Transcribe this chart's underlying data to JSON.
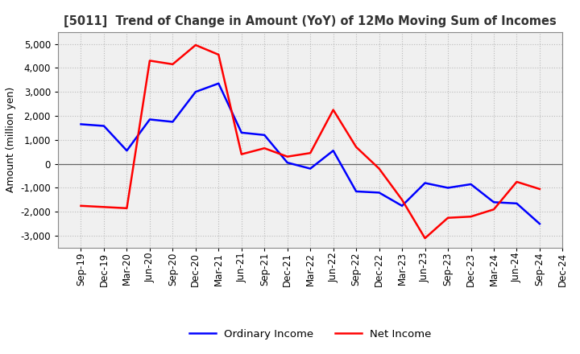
{
  "title": "[5011]  Trend of Change in Amount (YoY) of 12Mo Moving Sum of Incomes",
  "ylabel": "Amount (million yen)",
  "x_labels": [
    "Sep-19",
    "Dec-19",
    "Mar-20",
    "Jun-20",
    "Sep-20",
    "Dec-20",
    "Mar-21",
    "Jun-21",
    "Sep-21",
    "Dec-21",
    "Mar-22",
    "Jun-22",
    "Sep-22",
    "Dec-22",
    "Mar-23",
    "Jun-23",
    "Sep-23",
    "Dec-23",
    "Mar-24",
    "Jun-24",
    "Sep-24",
    "Dec-24"
  ],
  "ordinary_income": [
    1650,
    1580,
    550,
    1850,
    1750,
    3000,
    3350,
    1300,
    1200,
    50,
    -200,
    550,
    -1150,
    -1200,
    -1750,
    -800,
    -1000,
    -850,
    -1600,
    -1650,
    -2500,
    null
  ],
  "net_income": [
    -1750,
    -1800,
    -1850,
    4300,
    4150,
    4950,
    4550,
    400,
    650,
    300,
    450,
    2250,
    700,
    -200,
    -1500,
    -3100,
    -2250,
    -2200,
    -1900,
    -750,
    -1050,
    null
  ],
  "ordinary_color": "#0000ff",
  "net_color": "#ff0000",
  "ylim": [
    -3500,
    5500
  ],
  "yticks": [
    -3000,
    -2000,
    -1000,
    0,
    1000,
    2000,
    3000,
    4000,
    5000
  ],
  "background_color": "#ffffff",
  "plot_bg_color": "#f0f0f0",
  "grid_color": "#bbbbbb",
  "legend_labels": [
    "Ordinary Income",
    "Net Income"
  ],
  "title_fontsize": 10.5,
  "ylabel_fontsize": 9,
  "tick_fontsize": 8.5,
  "linewidth": 1.8
}
